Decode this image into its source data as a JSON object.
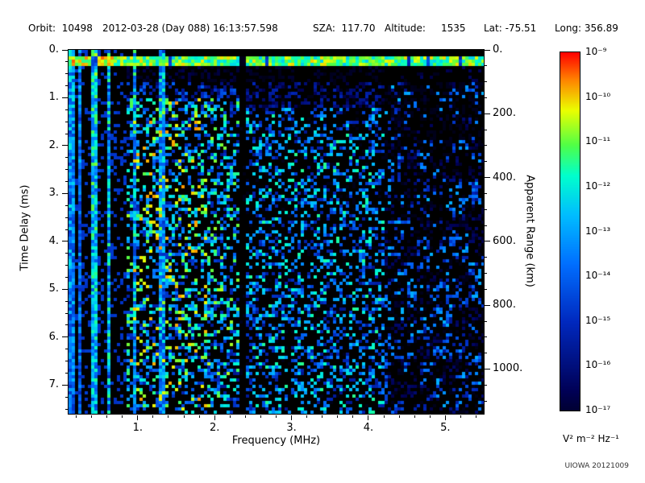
{
  "header": {
    "orbit": "Orbit:  10498",
    "datetime": "2012-03-28 (Day 088) 16:13:57.598",
    "sza": "SZA:  117.70",
    "altitude": "Altitude:     1535",
    "lat": "Lat: -75.51",
    "long": "Long: 356.89"
  },
  "chart_data": {
    "type": "heatmap",
    "title": "",
    "xlabel": "Frequency (MHz)",
    "ylabel": "Time Delay (ms)",
    "y2label": "Apparent Range (km)",
    "xlim": [
      0.1,
      5.5
    ],
    "ylim": [
      0,
      7.6
    ],
    "y2lim": [
      0,
      1140
    ],
    "grid": false,
    "legend_position": "right-colorbar",
    "x_ticks": {
      "values": [
        1,
        2,
        3,
        4,
        5
      ],
      "labels": [
        "1.",
        "2.",
        "3.",
        "4.",
        "5."
      ]
    },
    "x_minor_step": 0.2,
    "y_ticks": {
      "values": [
        0,
        1,
        2,
        3,
        4,
        5,
        6,
        7
      ],
      "labels": [
        "0.",
        "1.",
        "2.",
        "3.",
        "4.",
        "5.",
        "6.",
        "7."
      ]
    },
    "y_minor_step": 0.25,
    "y2_ticks": {
      "values": [
        0,
        200,
        400,
        600,
        800,
        1000
      ],
      "labels": [
        "0.",
        "200.",
        "400.",
        "600.",
        "800.",
        "1000."
      ]
    },
    "y2_minor_step": 50,
    "colorbar": {
      "scale": "log",
      "max": 1e-09,
      "min": 1e-17,
      "units": "V² m⁻² Hz⁻¹",
      "tick_labels": [
        "10⁻⁹",
        "10⁻¹⁰",
        "10⁻¹¹",
        "10⁻¹²",
        "10⁻¹³",
        "10⁻¹⁴",
        "10⁻¹⁵",
        "10⁻¹⁶",
        "10⁻¹⁷"
      ]
    },
    "features": {
      "description": "Radar sounder ionogram: speckled blue noise over black background",
      "surface_echo_band_ms": [
        0.12,
        0.35
      ],
      "ionospheric_stripe_region_mhz": [
        0.1,
        0.85
      ],
      "plasma_line_frequencies_mhz": [
        0.62,
        0.95,
        1.32
      ],
      "blanked_band_mhz": [
        2.32,
        2.42
      ],
      "sparse_region_mhz": [
        4.2,
        5.5
      ]
    }
  },
  "footer": {
    "credit": "UIOWA 20121009"
  }
}
